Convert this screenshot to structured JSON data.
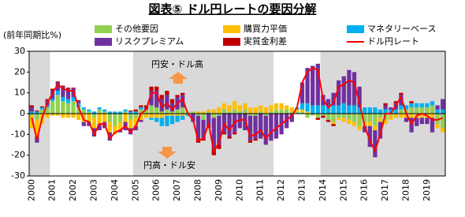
{
  "chart_data": {
    "type": "bar",
    "title": "図表⑤ ドル円レートの要因分解",
    "y_label": "(前年同期比%)",
    "annotations": [
      "円安・ドル高",
      "円高・ドル安"
    ],
    "stacked": true,
    "categories": [
      "2000",
      null,
      null,
      null,
      "2001",
      null,
      null,
      null,
      "2002",
      null,
      null,
      null,
      "2003",
      null,
      null,
      null,
      "2004",
      null,
      null,
      null,
      "2005",
      null,
      null,
      null,
      "2006",
      null,
      null,
      null,
      "2007",
      null,
      null,
      null,
      "2008",
      null,
      null,
      null,
      "2009",
      null,
      null,
      null,
      "2010",
      null,
      null,
      null,
      "2011",
      null,
      null,
      null,
      "2012",
      null,
      null,
      null,
      "2013",
      null,
      null,
      null,
      "2014",
      null,
      null,
      null,
      "2015",
      null,
      null,
      null,
      "2016",
      null,
      null,
      null,
      "2017",
      null,
      null,
      null,
      "2018",
      null,
      null,
      null,
      "2019",
      null,
      null,
      null
    ],
    "shaded_periods": [
      [
        0,
        3
      ],
      [
        20,
        46
      ],
      [
        56,
        79
      ]
    ],
    "shade_color": "#d9d9d9",
    "ylim": [
      -30,
      30
    ],
    "yticks": [
      -30,
      -20,
      -10,
      0,
      10,
      20,
      30
    ],
    "grid": false,
    "series": [
      {
        "name": "その他要因",
        "color": "#92d050",
        "values": [
          -1,
          -3,
          2,
          3,
          6,
          9,
          6,
          5,
          6,
          3,
          2,
          1,
          -2,
          2,
          1,
          -4,
          -6,
          -4,
          1,
          -3,
          -2,
          2,
          2,
          4,
          3,
          1,
          2,
          1,
          2,
          3,
          1,
          1,
          -1,
          -3,
          1,
          -2,
          -1,
          2,
          1,
          2,
          1,
          2,
          -1,
          -1,
          1,
          -1,
          1,
          2,
          2,
          2,
          1,
          1,
          1,
          -2,
          -1,
          -2,
          -1,
          -3,
          -4,
          -2,
          -2,
          -3,
          -4,
          -6,
          -4,
          -4,
          -6,
          -2,
          -3,
          -1,
          0,
          2,
          2,
          3,
          3,
          3,
          3,
          4,
          -5,
          -7
        ]
      },
      {
        "name": "購買力平価",
        "color": "#ffc000",
        "values": [
          -6,
          -8,
          -5,
          -2,
          -1,
          -1,
          -2,
          -2,
          -2,
          -3,
          -4,
          -4,
          -5,
          -5,
          -4,
          -5,
          -4,
          -4,
          -4,
          -4,
          -4,
          -3,
          -2,
          -2,
          -2,
          -2,
          -1,
          -1,
          -1,
          -1,
          0,
          0,
          1,
          1,
          1,
          2,
          3,
          3,
          3,
          4,
          3,
          3,
          3,
          3,
          3,
          3,
          3,
          3,
          3,
          2,
          2,
          1,
          1,
          1,
          0,
          0,
          0,
          0,
          -1,
          -1,
          -2,
          -2,
          -2,
          -2,
          -2,
          -2,
          -2,
          -2,
          -2,
          -2,
          -2,
          -2,
          -2,
          -2,
          -2,
          -2,
          -2,
          -2,
          -2,
          -2
        ]
      },
      {
        "name": "マネタリーベース",
        "color": "#00b0f0",
        "values": [
          1,
          1,
          1,
          1,
          1,
          2,
          2,
          2,
          2,
          2,
          1,
          1,
          1,
          1,
          1,
          1,
          1,
          1,
          1,
          1,
          1,
          1,
          0,
          -1,
          -2,
          -4,
          -5,
          -4,
          -3,
          -2,
          -1,
          0,
          0,
          0,
          0,
          0,
          0,
          0,
          0,
          0,
          0,
          0,
          0,
          0,
          0,
          0,
          0,
          0,
          0,
          0,
          0,
          1,
          3,
          4,
          4,
          4,
          4,
          4,
          4,
          4,
          5,
          4,
          4,
          3,
          3,
          3,
          3,
          2,
          2,
          2,
          2,
          2,
          2,
          2,
          2,
          2,
          2,
          2,
          2,
          2
        ]
      },
      {
        "name": "リスクプレミアム",
        "color": "#7030a0",
        "values": [
          2,
          -3,
          0,
          2,
          4,
          4,
          5,
          5,
          4,
          1,
          -2,
          -2,
          -4,
          -3,
          -3,
          -4,
          0,
          -1,
          -4,
          -3,
          -2,
          -1,
          1,
          7,
          8,
          6,
          7,
          4,
          6,
          6,
          0,
          -4,
          -11,
          -9,
          -6,
          -15,
          -14,
          -9,
          -11,
          -9,
          -7,
          -8,
          -12,
          -11,
          -12,
          -14,
          -13,
          -12,
          -10,
          -7,
          -4,
          0,
          10,
          17,
          19,
          20,
          5,
          3,
          6,
          12,
          13,
          17,
          16,
          10,
          -3,
          -10,
          -13,
          -8,
          2,
          1,
          3,
          5,
          -2,
          -7,
          -4,
          -3,
          -3,
          -7,
          2,
          5
        ]
      },
      {
        "name": "実質金利差",
        "color": "#c00000",
        "values": [
          1,
          0.5,
          0.5,
          1,
          1,
          0.5,
          0.5,
          0.5,
          0.5,
          0.5,
          0,
          0,
          0,
          0,
          0,
          0,
          0,
          0,
          0,
          0.5,
          1,
          1,
          1,
          2,
          2,
          2,
          2,
          2,
          1,
          1,
          0,
          0,
          -2,
          -1,
          -1,
          -3,
          -2,
          -1,
          -1,
          -1,
          0,
          0,
          -1,
          -1,
          0,
          0,
          0,
          0,
          0,
          0,
          0,
          0,
          0,
          0,
          0,
          -1,
          -1,
          -1,
          -1,
          0,
          0,
          0,
          0,
          0,
          0,
          0,
          0,
          0,
          1,
          0,
          1,
          1,
          0,
          1,
          0,
          0,
          0,
          0,
          0,
          0
        ]
      },
      {
        "name": "ドル円レート",
        "color": "#ff0000",
        "type": "line",
        "values": [
          -2,
          -12.5,
          -2,
          5,
          10,
          14,
          12,
          11,
          11,
          3,
          -3,
          -4,
          -10,
          -5,
          -5,
          -12,
          -9,
          -8,
          -6,
          -9,
          -6,
          0,
          2,
          10,
          10,
          3,
          5,
          2,
          5,
          7,
          0,
          -3,
          -13,
          -12,
          -5,
          -18,
          -14,
          -5,
          -8,
          -4,
          -3,
          -3,
          -11,
          -10,
          -8,
          -12,
          -9,
          -7,
          -5,
          -3,
          -1,
          3,
          15,
          20,
          22,
          21,
          7,
          3,
          5,
          13,
          14,
          16,
          15,
          5,
          -6,
          -13,
          -18,
          -10,
          0,
          0,
          4,
          8,
          0,
          -5,
          -1,
          0,
          -1,
          -3,
          -3,
          -2
        ]
      }
    ]
  }
}
